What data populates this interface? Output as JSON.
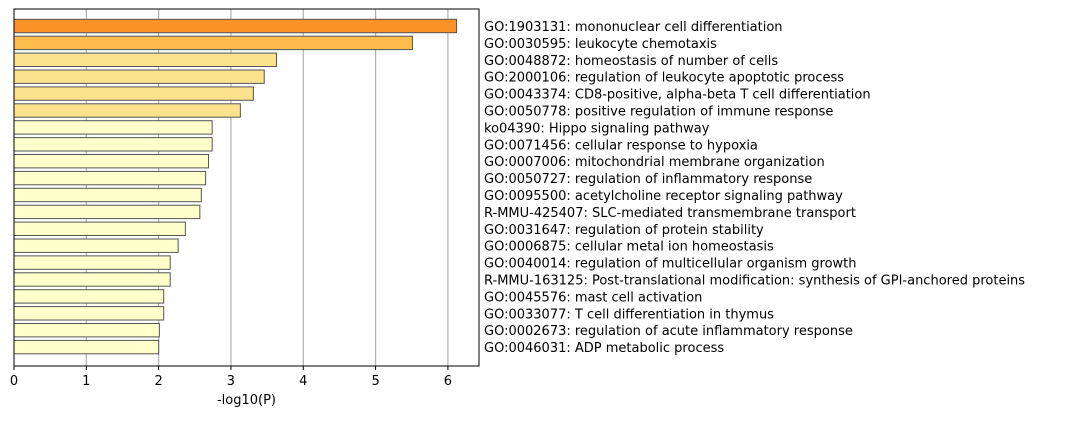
{
  "chart_data": {
    "type": "bar",
    "orientation": "horizontal",
    "xlabel": "-log10(P)",
    "ylabel": "",
    "title": "",
    "xlim": [
      0,
      6.43
    ],
    "xticks": [
      0,
      1,
      2,
      3,
      4,
      5,
      6
    ],
    "grid": "vertical",
    "categories": [
      "GO:1903131: mononuclear cell differentiation",
      "GO:0030595: leukocyte chemotaxis",
      "GO:0048872: homeostasis of number of cells",
      "GO:2000106: regulation of leukocyte apoptotic process",
      "GO:0043374: CD8-positive, alpha-beta T cell differentiation",
      "GO:0050778: positive regulation of immune response",
      "ko04390: Hippo signaling pathway",
      "GO:0071456: cellular response to hypoxia",
      "GO:0007006: mitochondrial membrane organization",
      "GO:0050727: regulation of inflammatory response",
      "GO:0095500: acetylcholine receptor signaling pathway",
      "R-MMU-425407: SLC-mediated transmembrane transport",
      "GO:0031647: regulation of protein stability",
      "GO:0006875: cellular metal ion homeostasis",
      "GO:0040014: regulation of multicellular organism growth",
      "R-MMU-163125: Post-translational modification: synthesis of GPI-anchored proteins",
      "GO:0045576: mast cell activation",
      "GO:0033077: T cell differentiation in thymus",
      "GO:0002673: regulation of acute inflammatory response",
      "GO:0046031: ADP metabolic process"
    ],
    "values": [
      6.12,
      5.51,
      3.63,
      3.46,
      3.31,
      3.13,
      2.74,
      2.74,
      2.69,
      2.65,
      2.59,
      2.57,
      2.37,
      2.27,
      2.16,
      2.16,
      2.07,
      2.07,
      2.01,
      2.0
    ],
    "bar_colors": [
      "#fb9228",
      "#febd4d",
      "#fde28d",
      "#fde28d",
      "#fde28d",
      "#fde28d",
      "#ffffcc",
      "#ffffcc",
      "#ffffcc",
      "#ffffcc",
      "#ffffcc",
      "#ffffcc",
      "#ffffcc",
      "#ffffcc",
      "#ffffcc",
      "#ffffcc",
      "#ffffcc",
      "#ffffcc",
      "#ffffcc",
      "#ffffcc"
    ],
    "bar_edge_color": "#555555",
    "grid_color": "#b0b0b0"
  }
}
